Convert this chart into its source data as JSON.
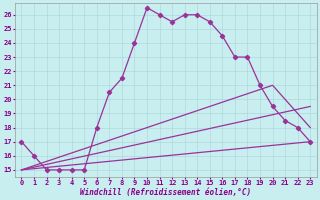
{
  "xlabel": "Windchill (Refroidissement éolien,°C)",
  "background_color": "#c8eef0",
  "grid_color": "#aad4d8",
  "line_color": "#993399",
  "xlim": [
    -0.5,
    23.5
  ],
  "ylim": [
    14.5,
    26.8
  ],
  "xticks": [
    0,
    1,
    2,
    3,
    4,
    5,
    6,
    7,
    8,
    9,
    10,
    11,
    12,
    13,
    14,
    15,
    16,
    17,
    18,
    19,
    20,
    21,
    22,
    23
  ],
  "yticks": [
    15,
    16,
    17,
    18,
    19,
    20,
    21,
    22,
    23,
    24,
    25,
    26
  ],
  "line1_x": [
    0,
    1,
    2,
    3,
    4,
    5,
    6,
    7,
    8,
    9,
    10,
    11,
    12,
    13,
    14,
    15,
    16,
    17,
    18,
    19,
    20,
    21,
    22,
    23
  ],
  "line1_y": [
    17.0,
    16.0,
    15.0,
    15.0,
    15.0,
    15.0,
    18.0,
    20.5,
    21.5,
    24.0,
    26.5,
    26.0,
    25.5,
    26.0,
    26.0,
    25.5,
    24.5,
    23.0,
    23.0,
    21.0,
    19.5,
    18.5,
    18.0,
    17.0
  ],
  "line2_x": [
    0,
    23
  ],
  "line2_y": [
    15.0,
    17.0
  ],
  "line3_x": [
    0,
    23
  ],
  "line3_y": [
    15.0,
    19.5
  ],
  "line4_x": [
    0,
    20,
    23
  ],
  "line4_y": [
    15.0,
    21.0,
    18.0
  ],
  "marker": "D",
  "markersize": 2.2,
  "linewidth": 0.9,
  "xlabel_fontsize": 5.5,
  "tick_fontsize": 5.0,
  "label_color": "#880088"
}
